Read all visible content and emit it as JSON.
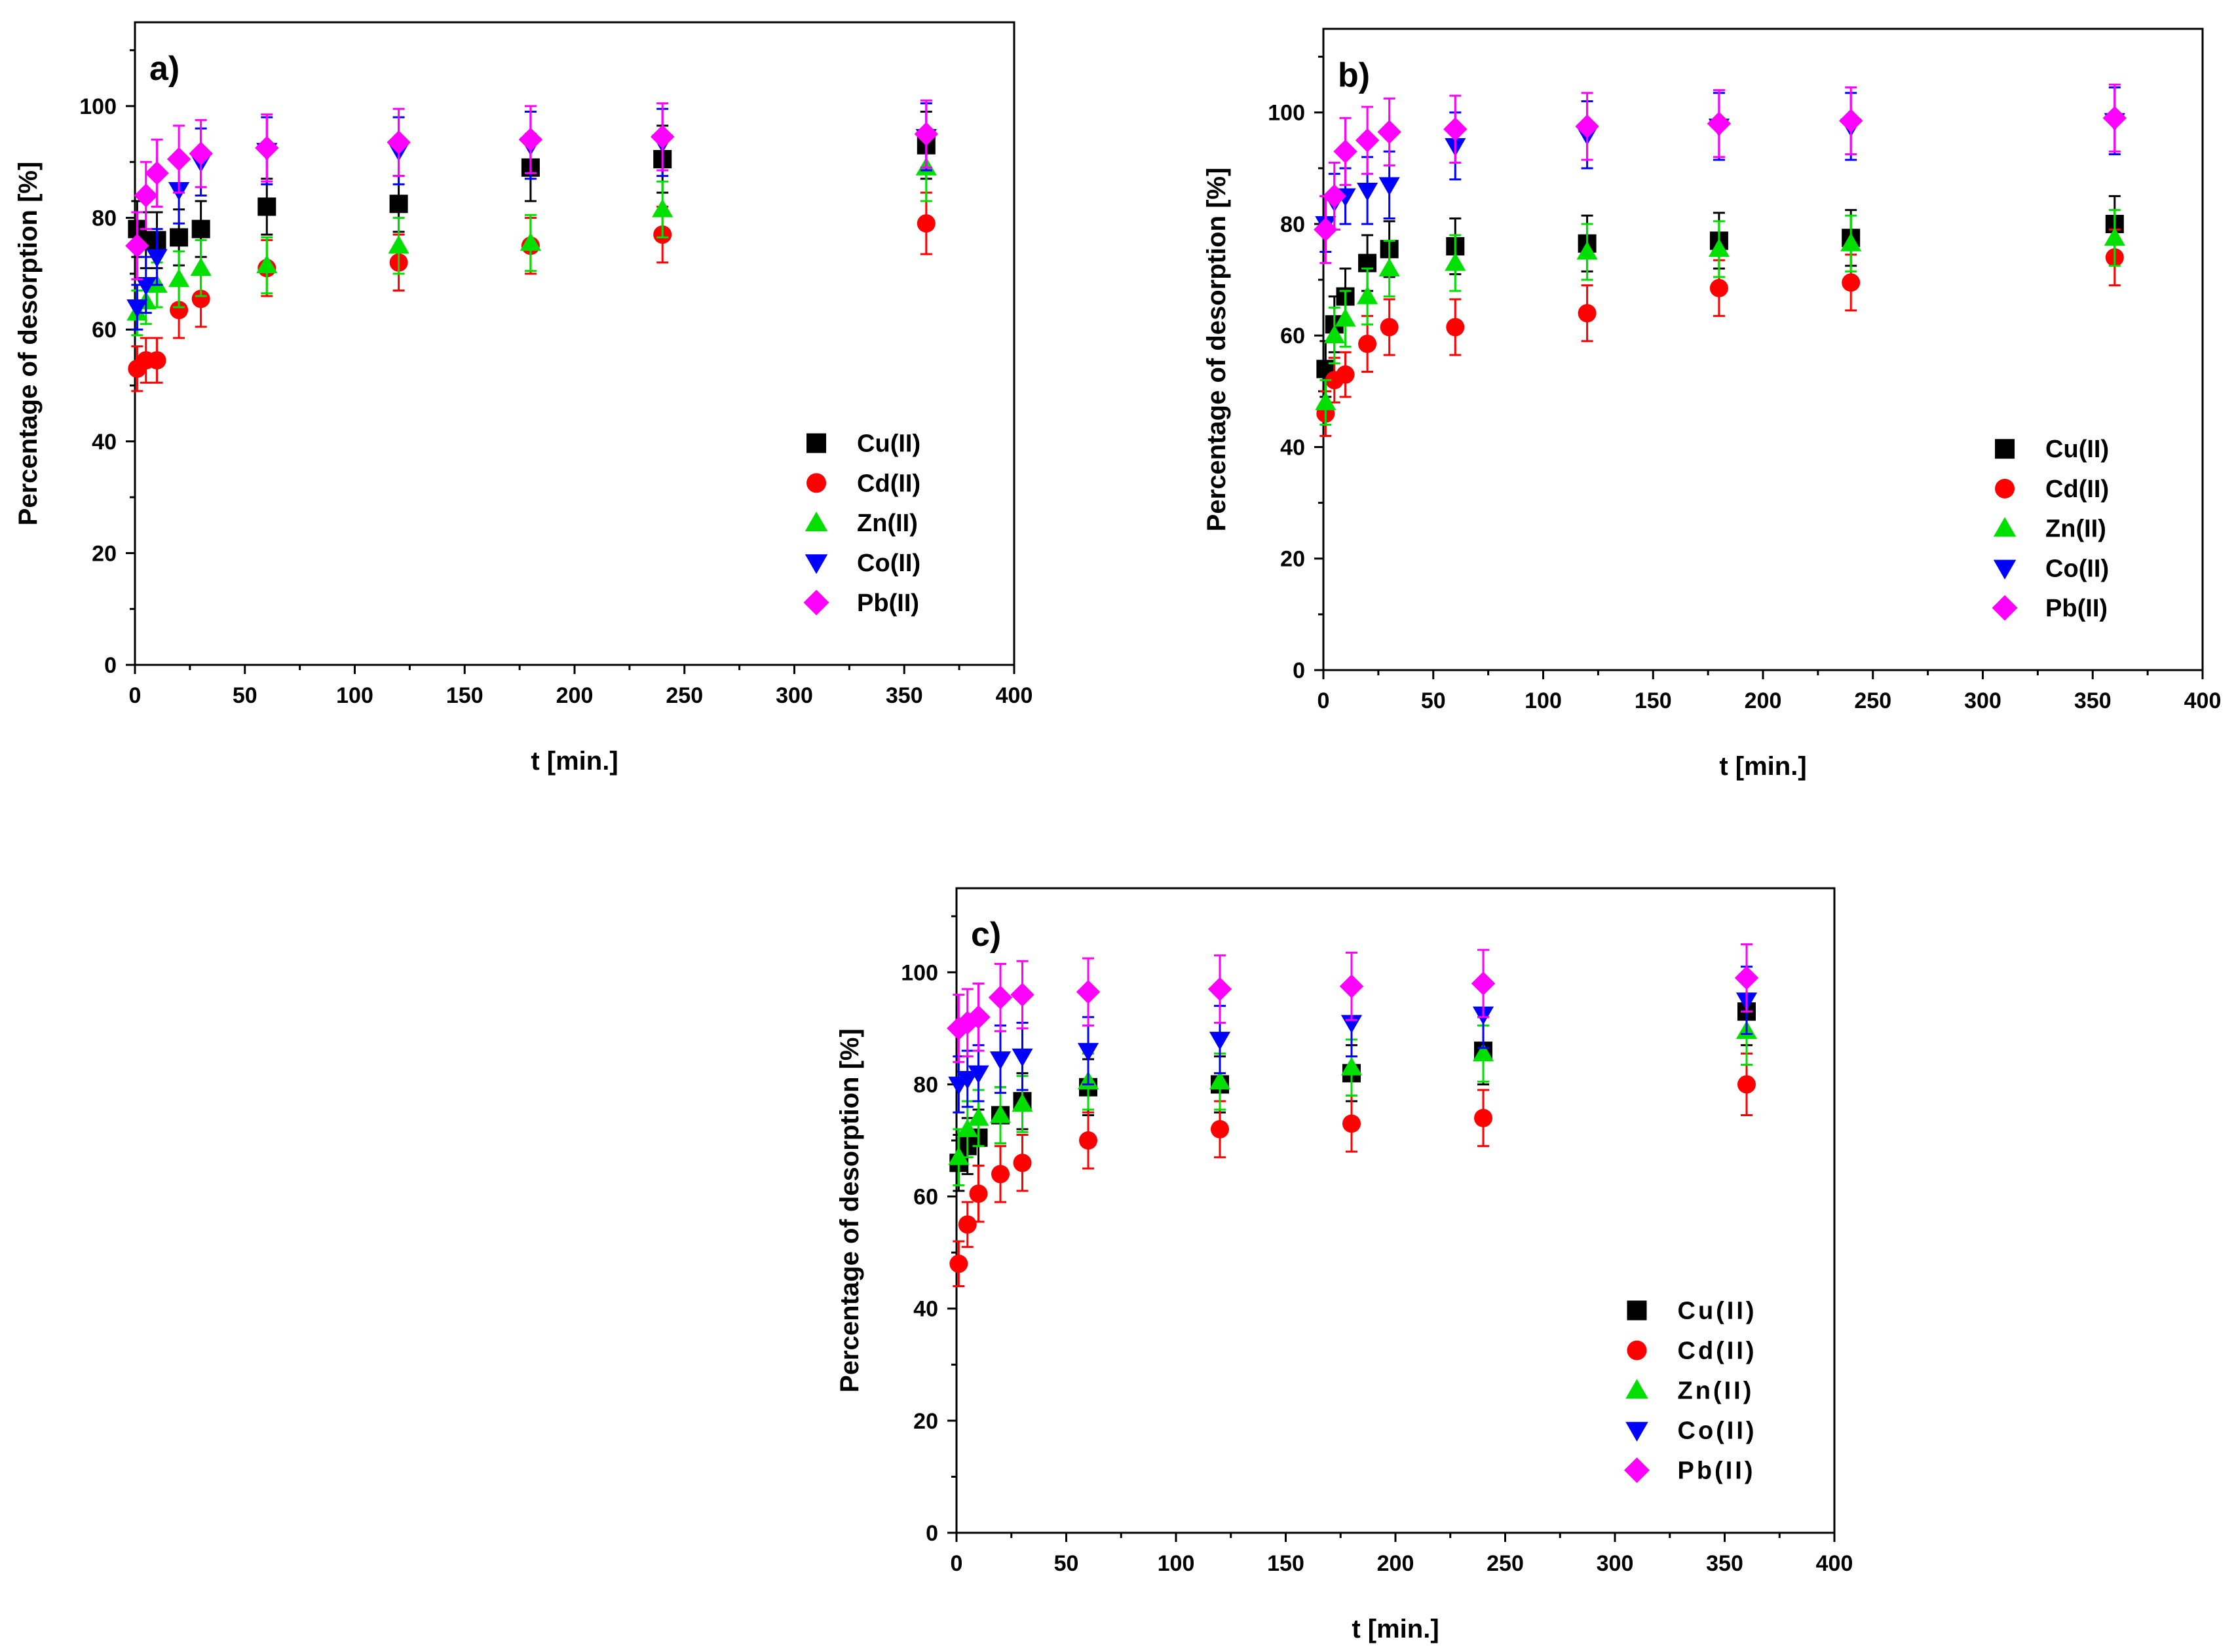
{
  "chart_data": [
    {
      "type": "scatter",
      "panel_label": "a)",
      "xlabel": "t [min.]",
      "ylabel": "Percentage of desorption [%]",
      "xlim": [
        0,
        400
      ],
      "ylim": [
        0,
        115
      ],
      "xticks": [
        0,
        50,
        100,
        150,
        200,
        250,
        300,
        350,
        400
      ],
      "yticks": [
        0,
        20,
        40,
        60,
        80,
        100
      ],
      "legend_position": "lower-right",
      "x": [
        1,
        5,
        10,
        20,
        30,
        60,
        120,
        180,
        240,
        360
      ],
      "series": [
        {
          "name": "Cu(II)",
          "color": "#000000",
          "marker": "square",
          "values": [
            78,
            76,
            76,
            76.5,
            78,
            82,
            82.5,
            89,
            90.5,
            93
          ],
          "errors": [
            5,
            5,
            5,
            5,
            5,
            5,
            5,
            6,
            6,
            6
          ]
        },
        {
          "name": "Cd(II)",
          "color": "#ff0000",
          "marker": "circle",
          "values": [
            53,
            54.5,
            54.5,
            63.5,
            65.5,
            71,
            72,
            75,
            77,
            79
          ],
          "errors": [
            4,
            4,
            4,
            5,
            5,
            5,
            5,
            5,
            5,
            5.5
          ]
        },
        {
          "name": "Zn(II)",
          "color": "#00e000",
          "marker": "triangle-up",
          "values": [
            63,
            65,
            68,
            69,
            71,
            71.5,
            75,
            75.5,
            81.5,
            89
          ],
          "errors": [
            4,
            4,
            4,
            5,
            5,
            5,
            5,
            5,
            5,
            6
          ]
        },
        {
          "name": "Co(II)",
          "color": "#0000ff",
          "marker": "triangle-down",
          "values": [
            64,
            68,
            73,
            85,
            90,
            92,
            92,
            93,
            93.5,
            94.5
          ],
          "errors": [
            4,
            5,
            5,
            6,
            6,
            6,
            6,
            6,
            6,
            6
          ]
        },
        {
          "name": "Pb(II)",
          "color": "#ff00ff",
          "marker": "diamond",
          "values": [
            75,
            84,
            88,
            90.5,
            91.5,
            92.5,
            93.5,
            94,
            94.5,
            95
          ],
          "errors": [
            6,
            6,
            6,
            6,
            6,
            6,
            6,
            6,
            6,
            6
          ]
        }
      ]
    },
    {
      "type": "scatter",
      "panel_label": "b)",
      "xlabel": "t [min.]",
      "ylabel": "Percentage of desorption [%]",
      "xlim": [
        0,
        400
      ],
      "ylim": [
        0,
        115
      ],
      "xticks": [
        0,
        50,
        100,
        150,
        200,
        250,
        300,
        350,
        400
      ],
      "yticks": [
        0,
        20,
        40,
        60,
        80,
        100
      ],
      "legend_position": "lower-right",
      "x": [
        1,
        5,
        10,
        20,
        30,
        60,
        120,
        180,
        240,
        360
      ],
      "series": [
        {
          "name": "Cu(II)",
          "color": "#000000",
          "marker": "square",
          "values": [
            54,
            62,
            67,
            73,
            75.5,
            76,
            76.5,
            77,
            77.5,
            80
          ],
          "errors": [
            5,
            5,
            5,
            5,
            5,
            5,
            5,
            5,
            5,
            5
          ]
        },
        {
          "name": "Cd(II)",
          "color": "#ff0000",
          "marker": "circle",
          "values": [
            46,
            52,
            53,
            58.5,
            61.5,
            61.5,
            64,
            68.5,
            69.5,
            74
          ],
          "errors": [
            4,
            4,
            4,
            5,
            5,
            5,
            5,
            5,
            5,
            5
          ]
        },
        {
          "name": "Zn(II)",
          "color": "#00e000",
          "marker": "triangle-up",
          "values": [
            48,
            60,
            63,
            67,
            72,
            73,
            75,
            75.5,
            76.5,
            77.5
          ],
          "errors": [
            4,
            5,
            5,
            5,
            5,
            5,
            5,
            5,
            5,
            5
          ]
        },
        {
          "name": "Co(II)",
          "color": "#0000ff",
          "marker": "triangle-down",
          "values": [
            80,
            84,
            85,
            86,
            87,
            94,
            96,
            97.5,
            97.5,
            98.5
          ],
          "errors": [
            5,
            5,
            5,
            6,
            6,
            6,
            6,
            6,
            6,
            6
          ]
        },
        {
          "name": "Pb(II)",
          "color": "#ff00ff",
          "marker": "diamond",
          "values": [
            79,
            85,
            93,
            95,
            96.5,
            97,
            97.5,
            98,
            98.5,
            99
          ],
          "errors": [
            6,
            6,
            6,
            6,
            6,
            6,
            6,
            6,
            6,
            6
          ]
        }
      ]
    },
    {
      "type": "scatter",
      "panel_label": "c)",
      "xlabel": "t [min.]",
      "ylabel": "Percentage of desorption [%]",
      "xlim": [
        0,
        400
      ],
      "ylim": [
        0,
        115
      ],
      "xticks": [
        0,
        50,
        100,
        150,
        200,
        250,
        300,
        350,
        400
      ],
      "yticks": [
        0,
        20,
        40,
        60,
        80,
        100
      ],
      "legend_position": "lower-right",
      "legend_spaced": true,
      "x": [
        1,
        5,
        10,
        20,
        30,
        60,
        120,
        180,
        240,
        360
      ],
      "series": [
        {
          "name": "Cu(II)",
          "color": "#000000",
          "marker": "square",
          "values": [
            66,
            69,
            70.5,
            74.5,
            77,
            79.5,
            80,
            82,
            86,
            93
          ],
          "errors": [
            5,
            5,
            5,
            5,
            5,
            5,
            5,
            5,
            6,
            6
          ]
        },
        {
          "name": "Cd(II)",
          "color": "#ff0000",
          "marker": "circle",
          "values": [
            48,
            55,
            60.5,
            64,
            66,
            70,
            72,
            73,
            74,
            80
          ],
          "errors": [
            4,
            4,
            5,
            5,
            5,
            5,
            5,
            5,
            5,
            5.5
          ]
        },
        {
          "name": "Zn(II)",
          "color": "#00e000",
          "marker": "triangle-up",
          "values": [
            67,
            72,
            74,
            74.5,
            76.5,
            80.5,
            80.5,
            83,
            85.5,
            89.5
          ],
          "errors": [
            5,
            5,
            5,
            5,
            5,
            5,
            5,
            5,
            5,
            6
          ]
        },
        {
          "name": "Co(II)",
          "color": "#0000ff",
          "marker": "triangle-down",
          "values": [
            80,
            81,
            82,
            84.5,
            85,
            86,
            88,
            91,
            92.5,
            95
          ],
          "errors": [
            5,
            5,
            5,
            6,
            6,
            6,
            6,
            6,
            6,
            6
          ]
        },
        {
          "name": "Pb(II)",
          "color": "#ff00ff",
          "marker": "diamond",
          "values": [
            90,
            91,
            92,
            95.5,
            96,
            96.5,
            97,
            97.5,
            98,
            99
          ],
          "errors": [
            6,
            6,
            6,
            6,
            6,
            6,
            6,
            6,
            6,
            6
          ]
        }
      ]
    }
  ]
}
